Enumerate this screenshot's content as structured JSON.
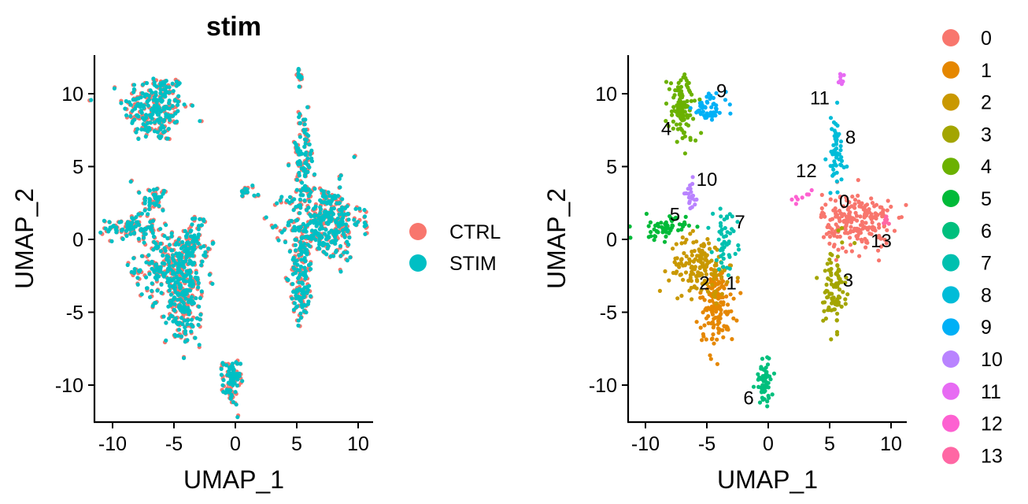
{
  "chart_data": [
    {
      "type": "scatter",
      "title": "stim",
      "xlabel": "UMAP_1",
      "ylabel": "UMAP_2",
      "xlim": [
        -11.5,
        11.5
      ],
      "ylim": [
        -12.5,
        12.5
      ],
      "xticks": [
        -10,
        -5,
        0,
        5,
        10
      ],
      "yticks": [
        -10,
        -5,
        0,
        5,
        10
      ],
      "xtick_labels": [
        "-10",
        "-5",
        "0",
        "5",
        "10"
      ],
      "ytick_labels": [
        "-10",
        "-5",
        "0",
        "5",
        "10"
      ],
      "legend": {
        "position": "right",
        "entries": [
          {
            "name": "CTRL",
            "color": "#F8766D"
          },
          {
            "name": "STIM",
            "color": "#00BFC4"
          }
        ]
      },
      "groups": [
        {
          "cx": -6.5,
          "cy": 9.0,
          "sx": 1.3,
          "sy": 1.2,
          "n": 180
        },
        {
          "cx": -6.6,
          "cy": 2.7,
          "sx": 0.5,
          "sy": 0.5,
          "n": 30
        },
        {
          "cx": -8.5,
          "cy": 0.8,
          "sx": 1.0,
          "sy": 0.4,
          "n": 70
        },
        {
          "cx": -5.5,
          "cy": -1.8,
          "sx": 1.3,
          "sy": 1.1,
          "n": 160
        },
        {
          "cx": -4.2,
          "cy": -4.3,
          "sx": 0.7,
          "sy": 1.4,
          "n": 150
        },
        {
          "cx": -3.3,
          "cy": -0.1,
          "sx": 0.5,
          "sy": 1.0,
          "n": 50
        },
        {
          "cx": -0.3,
          "cy": -9.8,
          "sx": 0.35,
          "sy": 0.8,
          "n": 60
        },
        {
          "cx": 5.5,
          "cy": 5.8,
          "sx": 0.5,
          "sy": 1.5,
          "n": 70
        },
        {
          "cx": 5.3,
          "cy": 11.1,
          "sx": 0.15,
          "sy": 0.25,
          "n": 10
        },
        {
          "cx": 7.2,
          "cy": 1.2,
          "sx": 1.5,
          "sy": 1.3,
          "n": 260
        },
        {
          "cx": 5.4,
          "cy": -2.5,
          "sx": 0.45,
          "sy": 1.6,
          "n": 110
        },
        {
          "cx": 1.2,
          "cy": 3.4,
          "sx": 0.4,
          "sy": 0.3,
          "n": 10
        }
      ]
    },
    {
      "type": "scatter",
      "title": "",
      "xlabel": "UMAP_1",
      "ylabel": "UMAP_2",
      "xlim": [
        -11.5,
        11.5
      ],
      "ylim": [
        -12.5,
        12.5
      ],
      "xticks": [
        -10,
        -5,
        0,
        5,
        10
      ],
      "yticks": [
        -10,
        -5,
        0,
        5,
        10
      ],
      "xtick_labels": [
        "-10",
        "-5",
        "0",
        "5",
        "10"
      ],
      "ytick_labels": [
        "-10",
        "-5",
        "0",
        "5",
        "10"
      ],
      "legend": {
        "position": "right",
        "entries": [
          {
            "name": "0",
            "color": "#F8766D"
          },
          {
            "name": "1",
            "color": "#E58700"
          },
          {
            "name": "2",
            "color": "#C99800"
          },
          {
            "name": "3",
            "color": "#A3A500"
          },
          {
            "name": "4",
            "color": "#6BB100"
          },
          {
            "name": "5",
            "color": "#00BA38"
          },
          {
            "name": "6",
            "color": "#00BF7D"
          },
          {
            "name": "7",
            "color": "#00C0AF"
          },
          {
            "name": "8",
            "color": "#00BCD8"
          },
          {
            "name": "9",
            "color": "#00B0F6"
          },
          {
            "name": "10",
            "color": "#B983FF"
          },
          {
            "name": "11",
            "color": "#E76BF3"
          },
          {
            "name": "12",
            "color": "#FD61D1"
          },
          {
            "name": "13",
            "color": "#FF67A4"
          }
        ]
      },
      "clusters": [
        {
          "id": "0",
          "cx": 7.2,
          "cy": 1.2,
          "sx": 1.4,
          "sy": 1.0,
          "n": 220,
          "label_x": 6.2,
          "label_y": 2.6
        },
        {
          "id": "1",
          "cx": -4.2,
          "cy": -4.5,
          "sx": 0.7,
          "sy": 1.4,
          "n": 150,
          "label_x": -3.0,
          "label_y": -3.0
        },
        {
          "id": "2",
          "cx": -5.6,
          "cy": -1.8,
          "sx": 1.2,
          "sy": 1.0,
          "n": 150,
          "label_x": -5.2,
          "label_y": -3.0
        },
        {
          "id": "3",
          "cx": 5.4,
          "cy": -3.3,
          "sx": 0.45,
          "sy": 1.4,
          "n": 90,
          "label_x": 6.5,
          "label_y": -2.8
        },
        {
          "id": "4",
          "cx": -7.0,
          "cy": 8.9,
          "sx": 0.6,
          "sy": 1.2,
          "n": 110,
          "label_x": -8.3,
          "label_y": 7.6
        },
        {
          "id": "5",
          "cx": -8.5,
          "cy": 0.8,
          "sx": 0.9,
          "sy": 0.4,
          "n": 60,
          "label_x": -7.6,
          "label_y": 1.7
        },
        {
          "id": "6",
          "cx": -0.3,
          "cy": -9.8,
          "sx": 0.35,
          "sy": 0.8,
          "n": 60,
          "label_x": -1.6,
          "label_y": -10.9
        },
        {
          "id": "7",
          "cx": -3.5,
          "cy": 0.0,
          "sx": 0.5,
          "sy": 1.0,
          "n": 50,
          "label_x": -2.3,
          "label_y": 1.2
        },
        {
          "id": "8",
          "cx": 5.5,
          "cy": 5.8,
          "sx": 0.4,
          "sy": 1.4,
          "n": 60,
          "label_x": 6.7,
          "label_y": 7.0
        },
        {
          "id": "9",
          "cx": -4.8,
          "cy": 9.0,
          "sx": 0.7,
          "sy": 0.5,
          "n": 50,
          "label_x": -3.8,
          "label_y": 10.2
        },
        {
          "id": "10",
          "cx": -6.2,
          "cy": 3.0,
          "sx": 0.3,
          "sy": 0.5,
          "n": 20,
          "label_x": -5.0,
          "label_y": 4.1
        },
        {
          "id": "11",
          "cx": 5.9,
          "cy": 11.1,
          "sx": 0.15,
          "sy": 0.2,
          "n": 8,
          "label_x": 4.2,
          "label_y": 9.7
        },
        {
          "id": "12",
          "cx": 2.5,
          "cy": 2.8,
          "sx": 0.5,
          "sy": 0.3,
          "n": 8,
          "label_x": 3.1,
          "label_y": 4.7
        },
        {
          "id": "13",
          "cx": 9.6,
          "cy": 1.2,
          "sx": 0.2,
          "sy": 0.2,
          "n": 8,
          "label_x": 9.2,
          "label_y": -0.1
        }
      ]
    }
  ]
}
